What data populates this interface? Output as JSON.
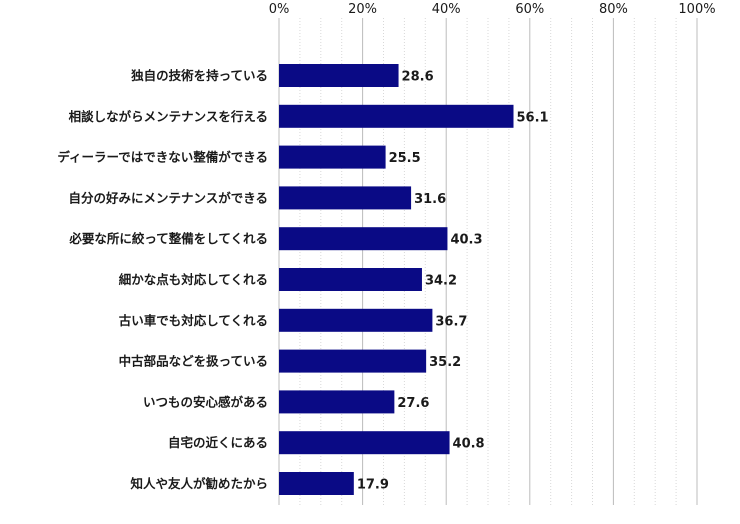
{
  "chart_data": {
    "type": "bar",
    "orientation": "horizontal",
    "categories": [
      "独自の技術を持っている",
      "相談しながらメンテナンスを行える",
      "ディーラーではできない整備ができる",
      "自分の好みにメンテナンスができる",
      "必要な所に絞って整備をしてくれる",
      "細かな点も対応してくれる",
      "古い車でも対応してくれる",
      "中古部品などを扱っている",
      "いつもの安心感がある",
      "自宅の近くにある",
      "知人や友人が勧めたから"
    ],
    "values": [
      28.6,
      56.1,
      25.5,
      31.6,
      40.3,
      34.2,
      36.7,
      35.2,
      27.6,
      40.8,
      17.9
    ],
    "value_labels": [
      "28.6",
      "56.1",
      "25.5",
      "31.6",
      "40.3",
      "34.2",
      "36.7",
      "35.2",
      "27.6",
      "40.8",
      "17.9"
    ],
    "xlim": [
      0,
      100
    ],
    "tick_labels": [
      "0%",
      "20%",
      "40%",
      "60%",
      "80%",
      "100%"
    ],
    "tick_values": [
      0,
      20,
      40,
      60,
      80,
      100
    ],
    "axis_position": "top",
    "grid": true,
    "title": "",
    "xlabel": "",
    "ylabel": "",
    "colors": {
      "bar": "#0a0a85",
      "grid_line": "#d8d8d8",
      "tick_line": "#bcbcbc"
    }
  }
}
